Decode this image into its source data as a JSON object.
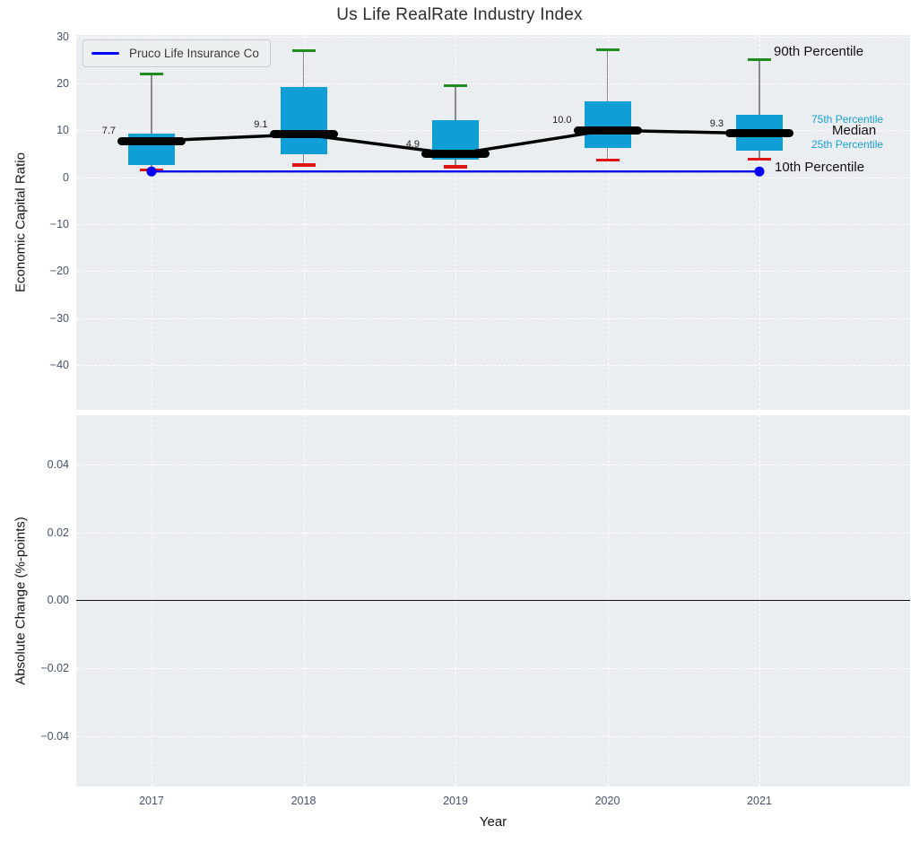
{
  "title": "Us Life RealRate Industry Index",
  "legend": {
    "label": "Pruco Life Insurance Co"
  },
  "annotations": {
    "p90": "90th Percentile",
    "p75": "75th Percentile",
    "median": "Median",
    "p25": "25th Percentile",
    "p10": "10th Percentile"
  },
  "colors": {
    "box": "#0f9ed5",
    "median_line": "#000000",
    "p90_cap": "#1e8c1e",
    "p10_cap": "#e11414",
    "whisker": "#8a8a8a",
    "company_line": "#0000f2",
    "cyan_label": "#1a9fd4",
    "plot_bg": "#eaeef0",
    "grid": "#ffffff",
    "tick": "#44536b",
    "zero_line": "#111111"
  },
  "chart_data": {
    "type": "box",
    "title": "Us Life RealRate Industry Index",
    "xlabel": "Year",
    "categories": [
      "2017",
      "2018",
      "2019",
      "2020",
      "2021"
    ],
    "top": {
      "ylabel": "Economic Capital Ratio",
      "ytick_labels": [
        "30",
        "20",
        "10",
        "0",
        "−10",
        "−20",
        "−30",
        "−40"
      ],
      "ytick_values": [
        30,
        20,
        10,
        0,
        -10,
        -20,
        -30,
        -40
      ],
      "ylim": [
        -49.6,
        30.3
      ],
      "grid": true,
      "boxes": [
        {
          "year": "2017",
          "p10": 1.6,
          "p25": 2.6,
          "median": 7.7,
          "p75": 9.2,
          "p90": 22.0,
          "label": "7.7"
        },
        {
          "year": "2018",
          "p10": 2.6,
          "p25": 4.8,
          "median": 9.1,
          "p75": 19.3,
          "p90": 26.9,
          "label": "9.1"
        },
        {
          "year": "2019",
          "p10": 2.2,
          "p25": 3.8,
          "median": 4.9,
          "p75": 12.1,
          "p90": 19.5,
          "label": "4.9"
        },
        {
          "year": "2020",
          "p10": 3.7,
          "p25": 6.2,
          "median": 10.0,
          "p75": 16.1,
          "p90": 27.1,
          "label": "10.0"
        },
        {
          "year": "2021",
          "p10": 3.8,
          "p25": 5.6,
          "median": 9.3,
          "p75": 13.2,
          "p90": 25.0,
          "label": "9.3"
        }
      ],
      "company_line": {
        "name": "Pruco Life Insurance Co",
        "values": [
          1.2,
          1.2,
          1.2,
          1.2,
          1.2
        ],
        "marker_years": [
          "2017",
          "2021"
        ]
      }
    },
    "bottom": {
      "ylabel": "Absolute Change (%-points)",
      "ytick_labels": [
        "0.04",
        "0.02",
        "0.00",
        "−0.02",
        "−0.04"
      ],
      "ytick_values": [
        0.04,
        0.02,
        0,
        -0.02,
        -0.04
      ],
      "ylim": [
        -0.0548,
        0.0545
      ],
      "grid": true,
      "zero_line": 0
    }
  }
}
